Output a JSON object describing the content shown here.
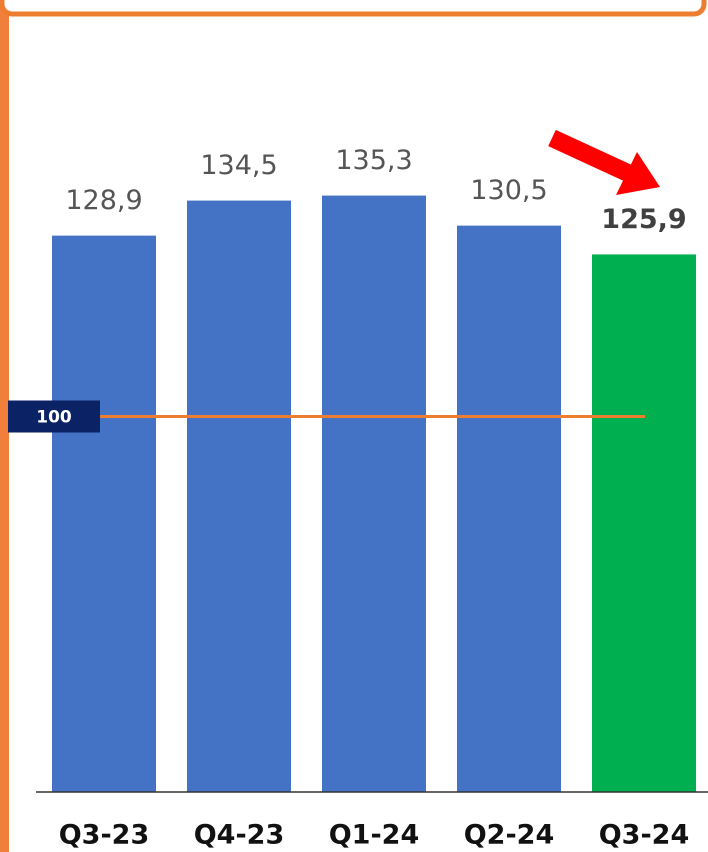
{
  "chart_data": {
    "type": "bar",
    "categories": [
      "Q3-23",
      "Q4-23",
      "Q1-24",
      "Q2-24",
      "Q3-24"
    ],
    "values": [
      128.9,
      134.5,
      135.3,
      130.5,
      125.9
    ],
    "value_labels": [
      "128,9",
      "134,5",
      "135,3",
      "130,5",
      "125,9"
    ],
    "colors": [
      "#4472c4",
      "#4472c4",
      "#4472c4",
      "#4472c4",
      "#00b050"
    ],
    "highlight": 4,
    "ylim": [
      40,
      160
    ],
    "reference_line": {
      "value": 100,
      "label": "100",
      "color": "#ed7d31"
    }
  }
}
